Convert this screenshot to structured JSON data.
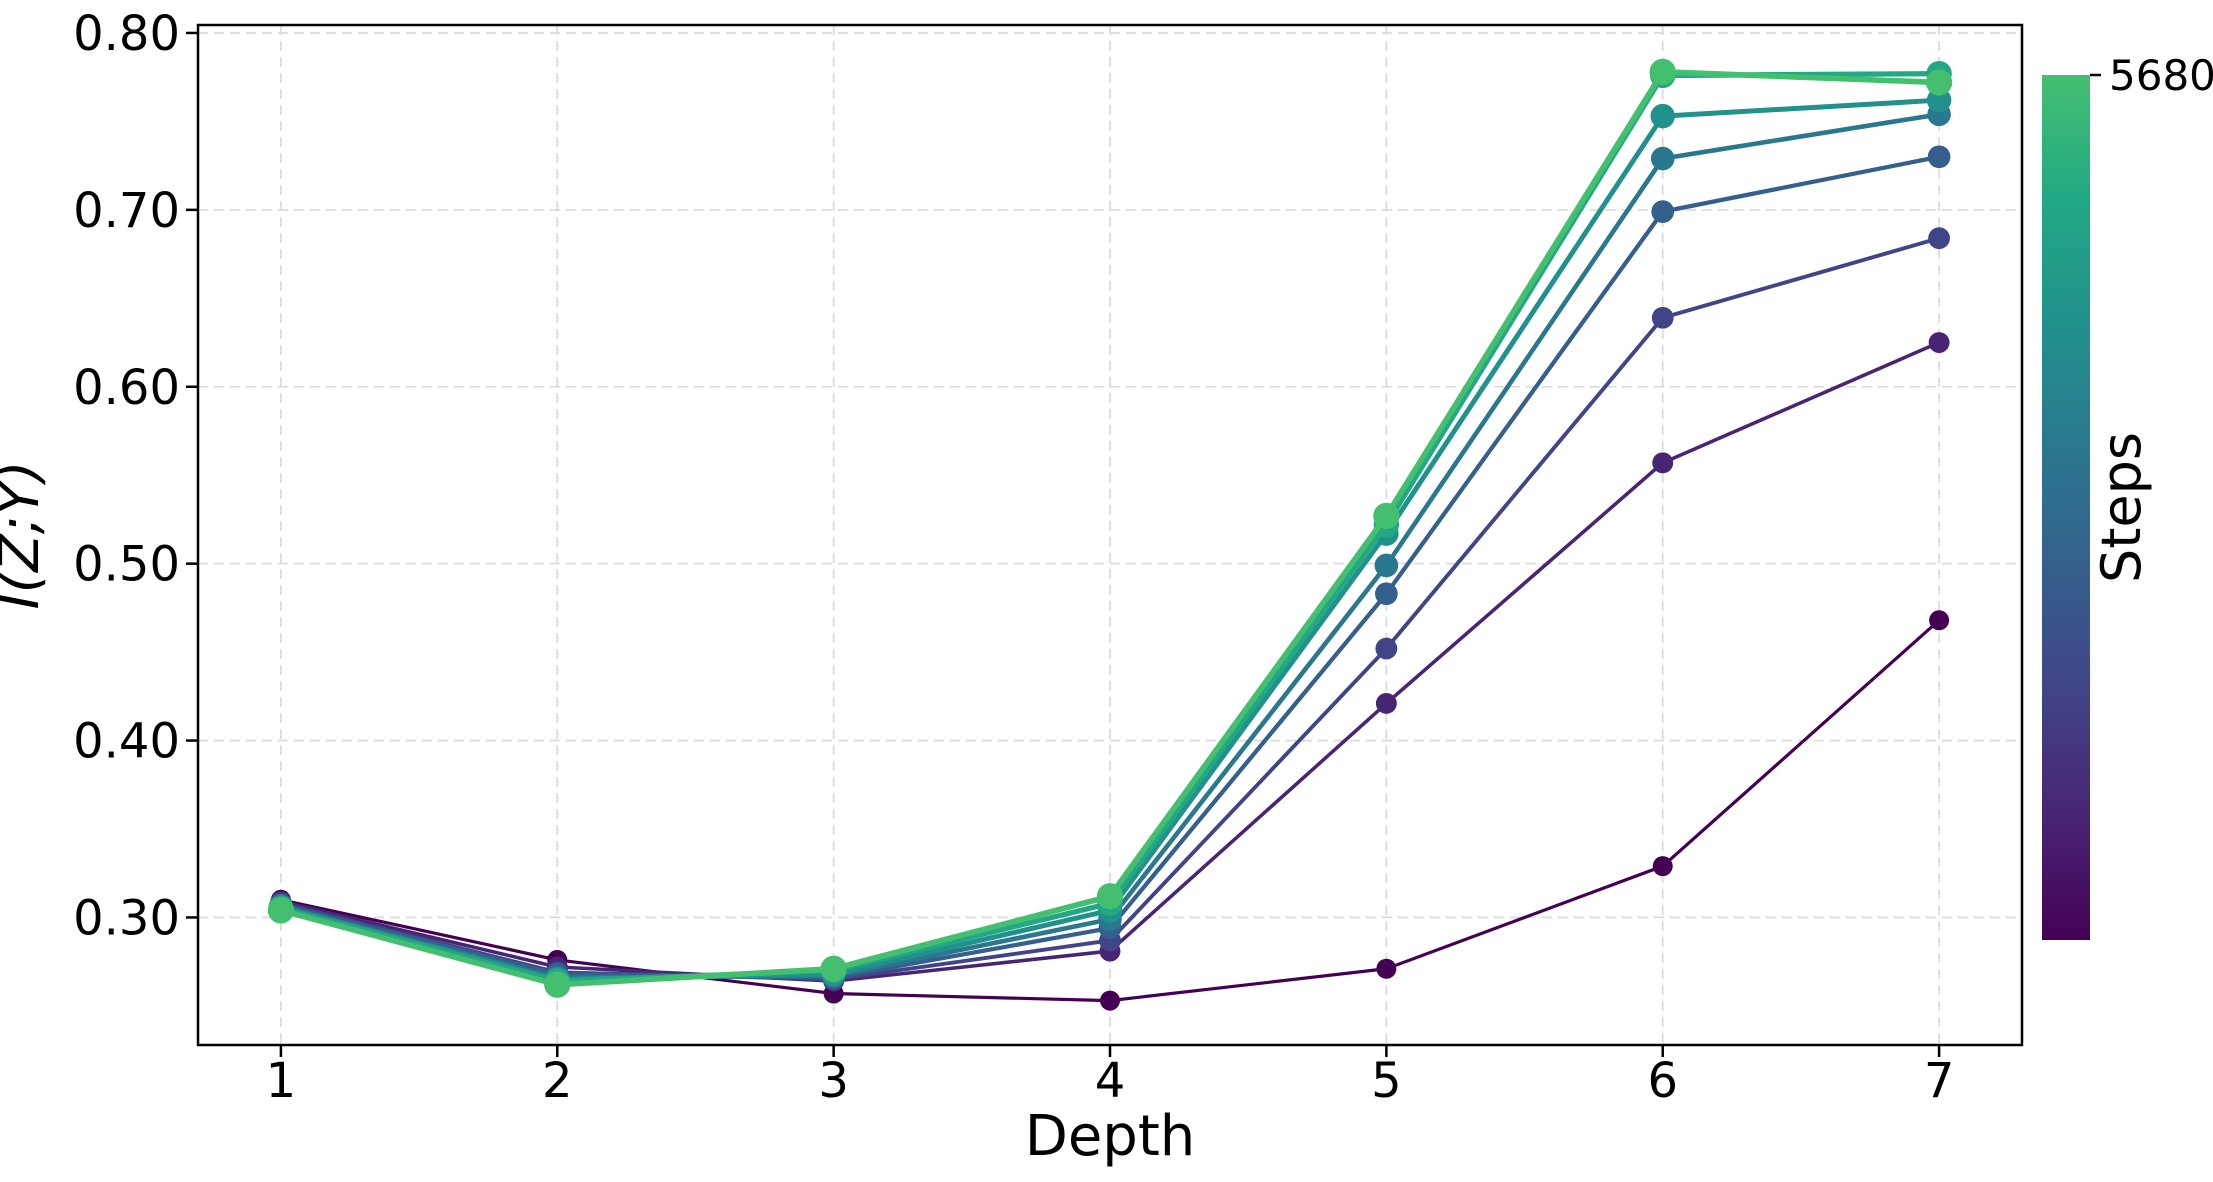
{
  "figure": {
    "background": "#ffffff",
    "text_color": "#000000",
    "grid_color": "#dcdcdc",
    "spine_color": "#000000"
  },
  "chart_data": {
    "type": "line",
    "title": "",
    "xlabel": "Depth",
    "ylabel": "I(Z;Y)",
    "x": [
      1,
      2,
      3,
      4,
      5,
      6,
      7
    ],
    "x_tick_labels": [
      "1",
      "2",
      "3",
      "4",
      "5",
      "6",
      "7"
    ],
    "y_ticks": [
      0.3,
      0.4,
      0.5,
      0.6,
      0.7,
      0.8
    ],
    "y_tick_labels": [
      "0.30",
      "0.40",
      "0.50",
      "0.60",
      "0.70",
      "0.80"
    ],
    "xlim": [
      0.7,
      7.3
    ],
    "ylim": [
      0.2279,
      0.8045
    ],
    "grid": true,
    "legend_position": "none",
    "series": [
      {
        "name": "steps-line-1",
        "rank": "lowest-steps",
        "color": "#440154",
        "values": [
          0.31,
          0.276,
          0.257,
          0.253,
          0.271,
          0.329,
          0.468
        ]
      },
      {
        "name": "steps-line-2",
        "rank": "2",
        "color": "#482475",
        "values": [
          0.309,
          0.272,
          0.264,
          0.281,
          0.421,
          0.557,
          0.625
        ]
      },
      {
        "name": "steps-line-3",
        "rank": "3",
        "color": "#414487",
        "values": [
          0.308,
          0.269,
          0.265,
          0.287,
          0.452,
          0.639,
          0.684
        ]
      },
      {
        "name": "steps-line-4",
        "rank": "4",
        "color": "#355f8d",
        "values": [
          0.307,
          0.268,
          0.266,
          0.294,
          0.483,
          0.699,
          0.73
        ]
      },
      {
        "name": "steps-line-5",
        "rank": "5",
        "color": "#2a788e",
        "values": [
          0.306,
          0.266,
          0.267,
          0.299,
          0.499,
          0.729,
          0.754
        ]
      },
      {
        "name": "steps-line-6",
        "rank": "6",
        "color": "#21918c",
        "values": [
          0.306,
          0.265,
          0.268,
          0.304,
          0.517,
          0.753,
          0.762
        ]
      },
      {
        "name": "steps-line-7",
        "rank": "7",
        "color": "#22a884",
        "values": [
          0.305,
          0.264,
          0.27,
          0.308,
          0.522,
          0.776,
          0.777
        ]
      },
      {
        "name": "steps-line-8",
        "rank": "highest-steps",
        "color": "#44bf70",
        "values": [
          0.304,
          0.262,
          0.271,
          0.312,
          0.527,
          0.778,
          0.772
        ]
      }
    ],
    "colorbar": {
      "label": "Steps",
      "top_tick_label": "5680",
      "gradient_stops": [
        {
          "offset": 0.0,
          "color": "#440154"
        },
        {
          "offset": 0.143,
          "color": "#482475"
        },
        {
          "offset": 0.286,
          "color": "#414487"
        },
        {
          "offset": 0.429,
          "color": "#355f8d"
        },
        {
          "offset": 0.571,
          "color": "#2a788e"
        },
        {
          "offset": 0.714,
          "color": "#21918c"
        },
        {
          "offset": 0.857,
          "color": "#22a884"
        },
        {
          "offset": 1.0,
          "color": "#44bf70"
        }
      ]
    }
  }
}
